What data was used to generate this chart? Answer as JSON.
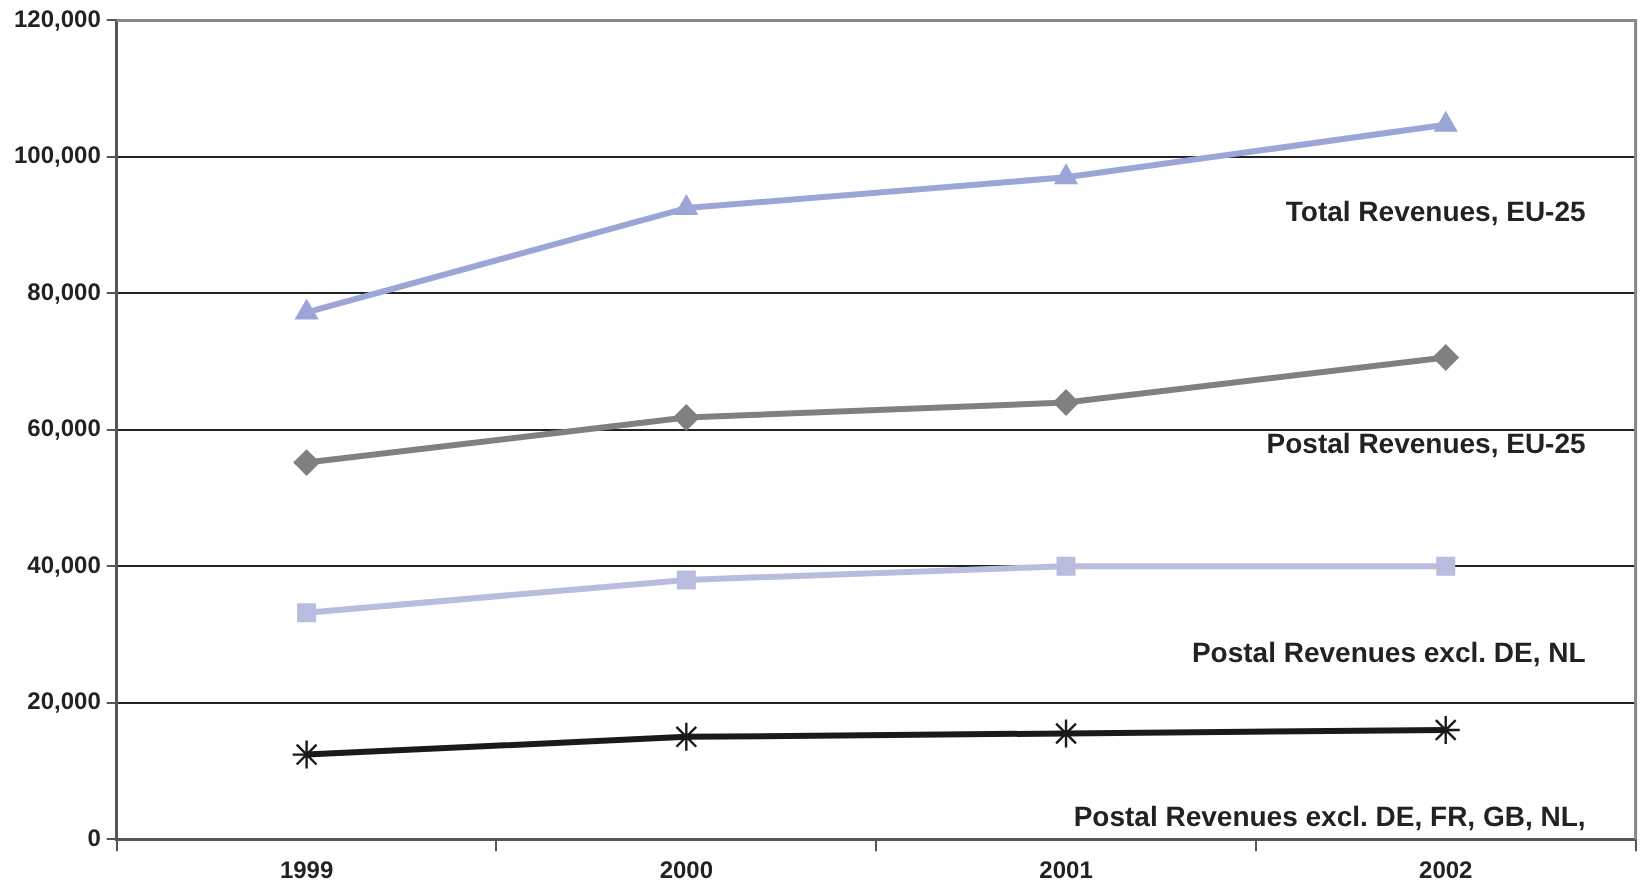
{
  "chart_data": {
    "type": "line",
    "categories": [
      "1999",
      "2000",
      "2001",
      "2002"
    ],
    "series": [
      {
        "name": "Total Revenues, EU-25",
        "color": "#9ca6d6",
        "marker": "triangle",
        "values": [
          77200,
          92500,
          97000,
          104700
        ]
      },
      {
        "name": "Postal Revenues, EU-25",
        "color": "#808080",
        "marker": "diamond",
        "values": [
          55200,
          61800,
          64000,
          70600
        ]
      },
      {
        "name": "Postal Revenues excl. DE, NL",
        "color": "#b8bde0",
        "marker": "square",
        "values": [
          33200,
          38000,
          40000,
          40000
        ]
      },
      {
        "name": "Postal Revenues excl. DE, FR, GB, NL,",
        "color": "#1a1a1a",
        "marker": "cross",
        "values": [
          12400,
          15000,
          15500,
          16000
        ]
      }
    ],
    "ylim": [
      0,
      120000
    ],
    "yticks": [
      0,
      {
        "value": 20000,
        "label": "20,000"
      },
      {
        "value": 40000,
        "label": "40,000"
      },
      {
        "value": 60000,
        "label": "60,000"
      },
      {
        "value": 80000,
        "label": "80,000"
      },
      {
        "value": 100000,
        "label": "100,000"
      },
      {
        "value": 120000,
        "label": "120,000"
      }
    ],
    "grid": "y",
    "legend": false,
    "line_style": "solid"
  }
}
